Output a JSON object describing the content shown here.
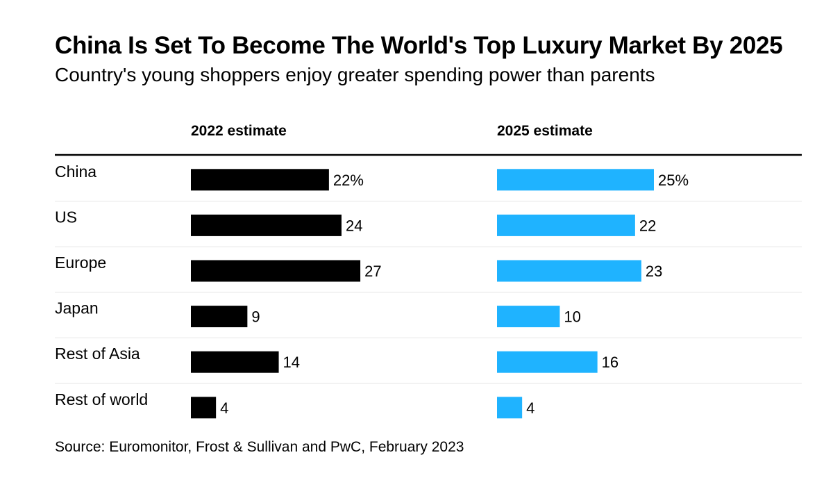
{
  "title": "China Is Set To Become The World's Top Luxury Market By 2025",
  "subtitle": "Country's young shoppers enjoy greater spending power than parents",
  "source": "Source: Euromonitor, Frost & Sullivan and PwC, February 2023",
  "colors": {
    "series_2022": "#000000",
    "series_2025": "#1fb3ff",
    "row_divider": "#e6e6e6",
    "header_rule": "#000000"
  },
  "chart_data": {
    "type": "bar",
    "orientation": "horizontal",
    "title": "China Is Set To Become The World's Top Luxury Market By 2025",
    "subtitle": "Country's young shoppers enjoy greater spending power than parents",
    "unit": "%",
    "categories": [
      "China",
      "US",
      "Europe",
      "Japan",
      "Rest of Asia",
      "Rest of world"
    ],
    "series": [
      {
        "name": "2022 estimate",
        "values": [
          22,
          24,
          27,
          9,
          14,
          4
        ],
        "labels": [
          "22%",
          "24",
          "27",
          "9",
          "14",
          "4"
        ]
      },
      {
        "name": "2025 estimate",
        "values": [
          25,
          22,
          23,
          10,
          16,
          4
        ],
        "labels": [
          "25%",
          "22",
          "23",
          "10",
          "16",
          "4"
        ]
      }
    ],
    "xlim": [
      0,
      30
    ],
    "grid": false,
    "legend": "column headers"
  }
}
